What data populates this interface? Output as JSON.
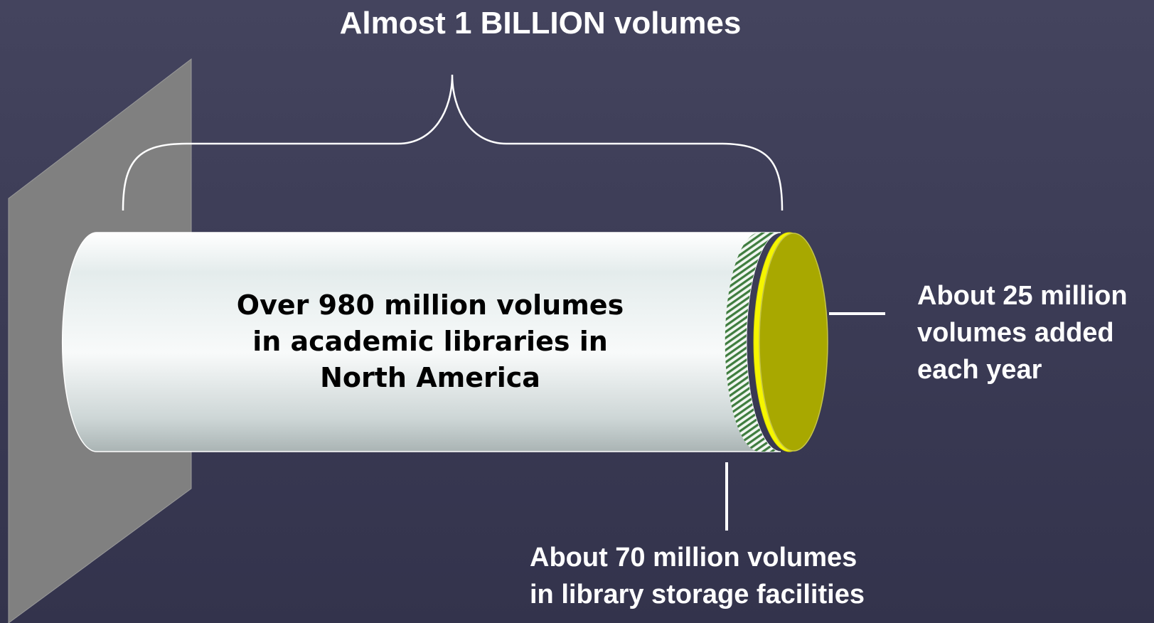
{
  "diagram": {
    "title": "Almost 1 BILLION volumes",
    "cylinder_lines": [
      "Over 980 million volumes",
      "in academic libraries in",
      "North America"
    ],
    "right_label_lines": [
      "About 25 million",
      "volumes added",
      "each year"
    ],
    "bottom_label_lines": [
      "About 70 million volumes",
      "in library storage facilities"
    ]
  },
  "colors": {
    "background": "#3e3e58",
    "wall": "#808080",
    "cylinder_body": "#dfe6e6",
    "storage_segment": "#3f7d3f",
    "yellow_ring": "#f5f500",
    "end_cap": "#a8a800",
    "label_text": "#ffffff",
    "cylinder_text": "#000000"
  }
}
